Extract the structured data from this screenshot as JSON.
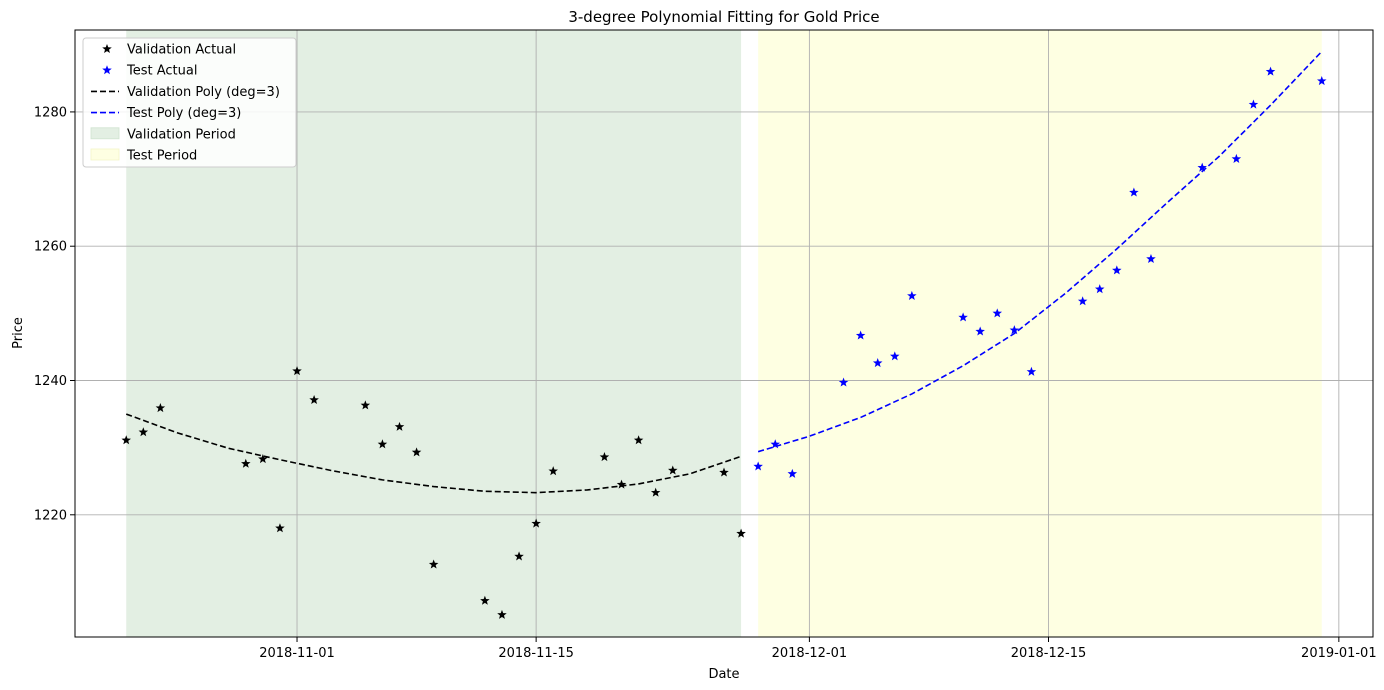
{
  "chart_data": {
    "type": "scatter",
    "title": "3-degree Polynomial Fitting for Gold Price",
    "xlabel": "Date",
    "ylabel": "Price",
    "xlim": [
      "2018-10-19",
      "2019-01-03"
    ],
    "ylim": [
      1201.8,
      1292.2
    ],
    "x_ticks": [
      "2018-11-01",
      "2018-11-15",
      "2018-12-01",
      "2018-12-15",
      "2019-01-01"
    ],
    "y_ticks": [
      1220,
      1240,
      1260,
      1280
    ],
    "grid": true,
    "legend_position": "upper-left",
    "legend": [
      "Validation Actual",
      "Test Actual",
      "Validation Poly (deg=3)",
      "Test Poly (deg=3)",
      "Validation Period",
      "Test Period"
    ],
    "shaded_periods": [
      {
        "name": "Validation Period",
        "start": "2018-10-22",
        "end": "2018-11-27",
        "color": "#e3efe3"
      },
      {
        "name": "Test Period",
        "start": "2018-11-28",
        "end": "2018-12-31",
        "color": "#feffe2"
      }
    ],
    "series": [
      {
        "name": "Validation Actual",
        "kind": "marker",
        "color": "#000000",
        "points": [
          [
            "2018-10-22",
            1231.1
          ],
          [
            "2018-10-23",
            1232.3
          ],
          [
            "2018-10-24",
            1235.9
          ],
          [
            "2018-10-29",
            1227.6
          ],
          [
            "2018-10-30",
            1228.3
          ],
          [
            "2018-10-31",
            1218.0
          ],
          [
            "2018-11-01",
            1241.4
          ],
          [
            "2018-11-02",
            1237.1
          ],
          [
            "2018-11-05",
            1236.3
          ],
          [
            "2018-11-06",
            1230.5
          ],
          [
            "2018-11-07",
            1233.1
          ],
          [
            "2018-11-08",
            1229.3
          ],
          [
            "2018-11-09",
            1212.6
          ],
          [
            "2018-11-12",
            1207.2
          ],
          [
            "2018-11-13",
            1205.1
          ],
          [
            "2018-11-14",
            1213.8
          ],
          [
            "2018-11-15",
            1218.7
          ],
          [
            "2018-11-16",
            1226.5
          ],
          [
            "2018-11-19",
            1228.6
          ],
          [
            "2018-11-20",
            1224.5
          ],
          [
            "2018-11-21",
            1231.1
          ],
          [
            "2018-11-22",
            1223.3
          ],
          [
            "2018-11-23",
            1226.6
          ],
          [
            "2018-11-26",
            1226.3
          ],
          [
            "2018-11-27",
            1217.2
          ]
        ]
      },
      {
        "name": "Test Actual",
        "kind": "marker",
        "color": "#0000ff",
        "points": [
          [
            "2018-11-28",
            1227.2
          ],
          [
            "2018-11-29",
            1230.5
          ],
          [
            "2018-11-30",
            1226.1
          ],
          [
            "2018-12-03",
            1239.7
          ],
          [
            "2018-12-04",
            1246.7
          ],
          [
            "2018-12-05",
            1242.6
          ],
          [
            "2018-12-06",
            1243.6
          ],
          [
            "2018-12-07",
            1252.6
          ],
          [
            "2018-12-10",
            1249.4
          ],
          [
            "2018-12-11",
            1247.3
          ],
          [
            "2018-12-12",
            1250.0
          ],
          [
            "2018-12-13",
            1247.5
          ],
          [
            "2018-12-14",
            1241.3
          ],
          [
            "2018-12-17",
            1251.8
          ],
          [
            "2018-12-18",
            1253.6
          ],
          [
            "2018-12-19",
            1256.4
          ],
          [
            "2018-12-20",
            1268.0
          ],
          [
            "2018-12-21",
            1258.1
          ],
          [
            "2018-12-24",
            1271.7
          ],
          [
            "2018-12-26",
            1273.0
          ],
          [
            "2018-12-27",
            1281.1
          ],
          [
            "2018-12-28",
            1286.0
          ],
          [
            "2018-12-31",
            1284.6
          ]
        ]
      },
      {
        "name": "Validation Poly (deg=3)",
        "kind": "dashed-line",
        "color": "#000000",
        "points": [
          [
            "2018-10-22",
            1235.0
          ],
          [
            "2018-10-25",
            1232.2
          ],
          [
            "2018-10-28",
            1229.9
          ],
          [
            "2018-10-31",
            1228.2
          ],
          [
            "2018-11-03",
            1226.6
          ],
          [
            "2018-11-06",
            1225.2
          ],
          [
            "2018-11-09",
            1224.2
          ],
          [
            "2018-11-12",
            1223.5
          ],
          [
            "2018-11-15",
            1223.3
          ],
          [
            "2018-11-18",
            1223.7
          ],
          [
            "2018-11-21",
            1224.6
          ],
          [
            "2018-11-24",
            1226.1
          ],
          [
            "2018-11-27",
            1228.7
          ]
        ]
      },
      {
        "name": "Test Poly (deg=3)",
        "kind": "dashed-line",
        "color": "#0000ff",
        "points": [
          [
            "2018-11-28",
            1229.4
          ],
          [
            "2018-12-01",
            1231.7
          ],
          [
            "2018-12-04",
            1234.5
          ],
          [
            "2018-12-07",
            1238.0
          ],
          [
            "2018-12-10",
            1242.2
          ],
          [
            "2018-12-13",
            1247.0
          ],
          [
            "2018-12-16",
            1253.0
          ],
          [
            "2018-12-19",
            1259.6
          ],
          [
            "2018-12-22",
            1266.6
          ],
          [
            "2018-12-25",
            1273.4
          ],
          [
            "2018-12-28",
            1281.0
          ],
          [
            "2018-12-31",
            1289.0
          ]
        ]
      }
    ]
  }
}
